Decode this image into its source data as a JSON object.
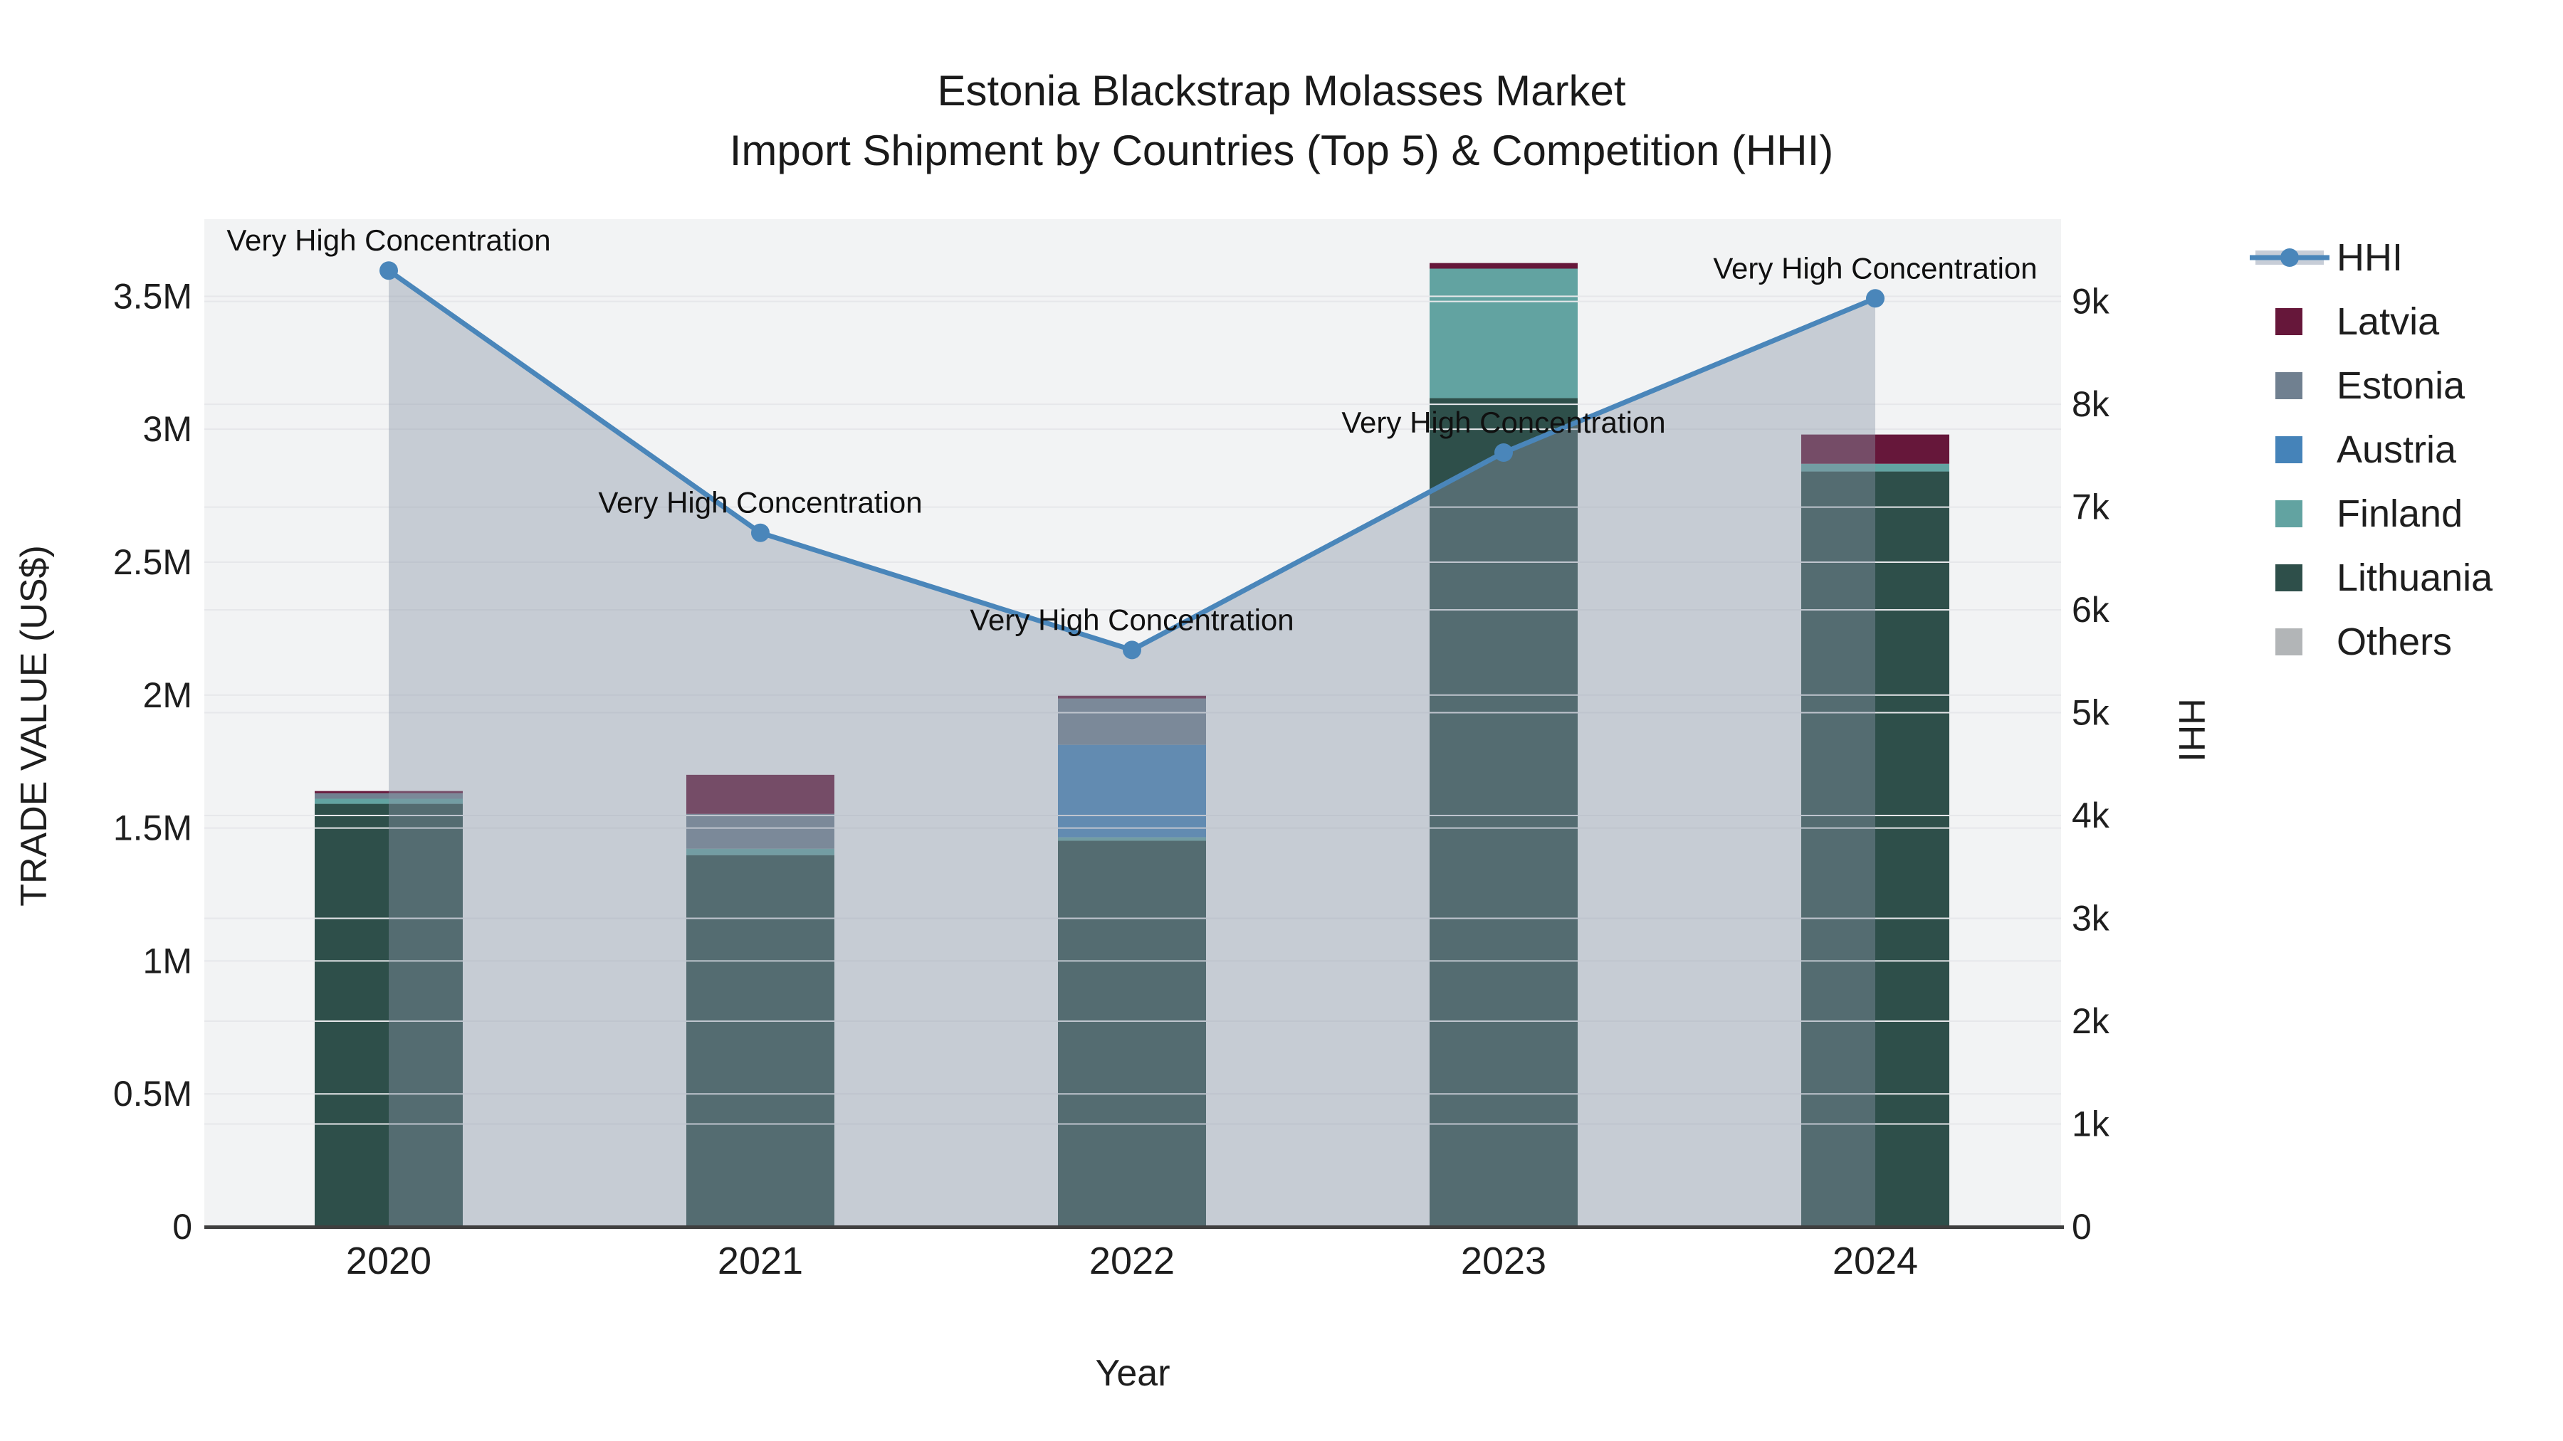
{
  "title": {
    "line1": "Estonia Blackstrap Molasses Market",
    "line2": "Import Shipment by Countries (Top 5) & Competition (HHI)"
  },
  "axes": {
    "left_title": "TRADE VALUE (US$)",
    "right_title": "HHI",
    "x_title": "Year",
    "left_ticks": [
      "0",
      "0.5M",
      "1M",
      "1.5M",
      "2M",
      "2.5M",
      "3M",
      "3.5M"
    ],
    "left_tick_values": [
      0,
      500000,
      1000000,
      1500000,
      2000000,
      2500000,
      3000000,
      3500000
    ],
    "right_ticks": [
      "0",
      "1k",
      "2k",
      "3k",
      "4k",
      "5k",
      "6k",
      "7k",
      "8k",
      "9k"
    ],
    "right_tick_values": [
      0,
      1000,
      2000,
      3000,
      4000,
      5000,
      6000,
      7000,
      8000,
      9000
    ]
  },
  "legend": {
    "items": [
      {
        "label": "HHI",
        "type": "line",
        "color_key": "hhi"
      },
      {
        "label": "Latvia",
        "type": "swatch",
        "color_key": "latvia"
      },
      {
        "label": "Estonia",
        "type": "swatch",
        "color_key": "estonia"
      },
      {
        "label": "Austria",
        "type": "swatch",
        "color_key": "austria"
      },
      {
        "label": "Finland",
        "type": "swatch",
        "color_key": "finland"
      },
      {
        "label": "Lithuania",
        "type": "swatch",
        "color_key": "lithuania"
      },
      {
        "label": "Others",
        "type": "swatch",
        "color_key": "others"
      }
    ]
  },
  "colors": {
    "hhi": "#4a86ba",
    "hhi_area_fill": "rgba(138,150,168,0.42)",
    "hhi_legend_band": "#c7cdd7",
    "latvia": "#66173a",
    "estonia": "#708090",
    "austria": "#4583b9",
    "finland": "#62a3a1",
    "lithuania": "#2e4f4a",
    "others": "#b2b5b7",
    "plot_bg": "#f2f3f4",
    "grid": "#e6e7ea",
    "axis_line": "#3f3f3f",
    "text": "#1e1e1e",
    "annotation_text": "#101010"
  },
  "chart_data": {
    "type": "combo: stacked-bar (left axis) + line-area (right axis)",
    "title": "Estonia Blackstrap Molasses Market — Import Shipment by Countries (Top 5) & Competition (HHI)",
    "xlabel": "Year",
    "ylabel_left": "TRADE VALUE (US$)",
    "ylabel_right": "HHI",
    "categories": [
      "2020",
      "2021",
      "2022",
      "2023",
      "2024"
    ],
    "left_ylim": [
      0,
      3790000
    ],
    "right_ylim": [
      0,
      9800
    ],
    "grid": "on",
    "legend_position": "right",
    "bar_stack_order_bottom_to_top": [
      "Lithuania",
      "Finland",
      "Austria",
      "Estonia",
      "Latvia",
      "Others"
    ],
    "series": [
      {
        "name": "Lithuania",
        "axis": "left",
        "unit": "US$",
        "values": [
          1591000,
          1398000,
          1452000,
          3117000,
          2841000
        ]
      },
      {
        "name": "Finland",
        "axis": "left",
        "unit": "US$",
        "values": [
          19000,
          24000,
          13000,
          487000,
          29000
        ]
      },
      {
        "name": "Austria",
        "axis": "left",
        "unit": "US$",
        "values": [
          0,
          0,
          348000,
          0,
          0
        ]
      },
      {
        "name": "Estonia",
        "axis": "left",
        "unit": "US$",
        "values": [
          21000,
          131000,
          174000,
          0,
          0
        ]
      },
      {
        "name": "Latvia",
        "axis": "left",
        "unit": "US$",
        "values": [
          8000,
          147000,
          11000,
          21000,
          110000
        ]
      },
      {
        "name": "Others",
        "axis": "left",
        "unit": "US$",
        "values": [
          0,
          0,
          0,
          0,
          0
        ]
      }
    ],
    "bar_totals_usd": [
      1639000,
      1700000,
      1998000,
      3625000,
      2980000
    ],
    "line_series": {
      "name": "HHI",
      "axis": "right",
      "values": [
        9300,
        6750,
        5610,
        7530,
        9030
      ],
      "area_fill_to_zero": true
    },
    "annotations": [
      {
        "x": "2020",
        "text": "Very High Concentration"
      },
      {
        "x": "2021",
        "text": "Very High Concentration"
      },
      {
        "x": "2022",
        "text": "Very High Concentration"
      },
      {
        "x": "2023",
        "text": "Very High Concentration"
      },
      {
        "x": "2024",
        "text": "Very High Concentration"
      }
    ]
  }
}
